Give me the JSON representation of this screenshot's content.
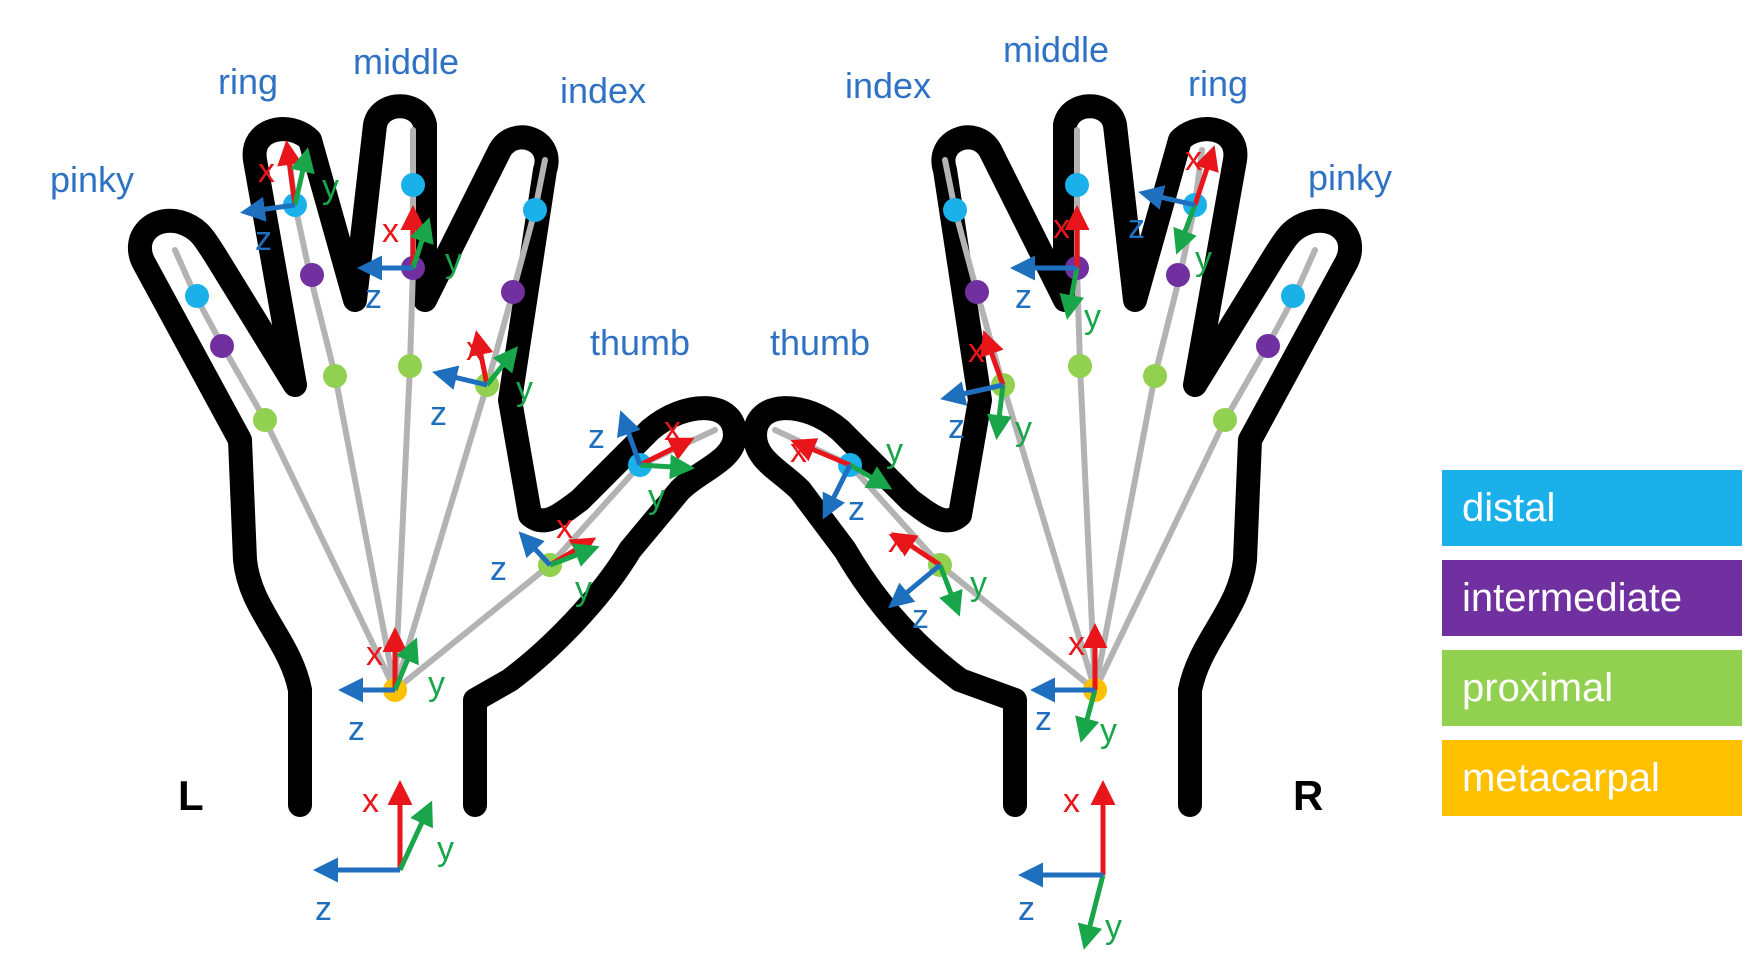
{
  "colors": {
    "outline": "#000000",
    "bone": "#b3b3b3",
    "label_blue": "#2f72c4",
    "axis_x": "#e8161b",
    "axis_y": "#19a54a",
    "axis_z": "#1f6fbf",
    "distal": "#1ab0ea",
    "intermediate": "#7030a0",
    "proximal": "#92d050",
    "metacarpal": "#ffc000"
  },
  "left_hand": {
    "side_label": "L",
    "finger_labels": {
      "pinky": "pinky",
      "ring": "ring",
      "middle": "middle",
      "index": "index",
      "thumb": "thumb"
    }
  },
  "right_hand": {
    "side_label": "R",
    "finger_labels": {
      "index": "index",
      "middle": "middle",
      "ring": "ring",
      "pinky": "pinky",
      "thumb": "thumb"
    }
  },
  "axis_labels": {
    "x": "x",
    "y": "y",
    "z": "z"
  },
  "legend": [
    {
      "label": "distal",
      "color": "#1ab0ea"
    },
    {
      "label": "intermediate",
      "color": "#7030a0"
    },
    {
      "label": "proximal",
      "color": "#92d050"
    },
    {
      "label": "metacarpal",
      "color": "#ffc000"
    }
  ]
}
